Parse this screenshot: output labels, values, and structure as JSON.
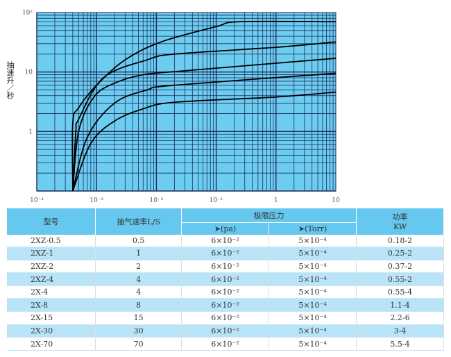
{
  "chart_data": {
    "type": "line",
    "title": "",
    "xlabel": "",
    "ylabel": "抽速升／秒",
    "xscale": "log",
    "yscale": "log",
    "xlim": [
      0.0001,
      10
    ],
    "ylim": [
      0.1,
      100
    ],
    "grid": true,
    "background_color": "#6ccdf0",
    "grid_color": "#1b2b5c",
    "line_color": "#000000",
    "x_ticks": [
      0.0001,
      0.001,
      0.01,
      0.1,
      1,
      10
    ],
    "x_tick_labels": [
      "10⁻⁴",
      "10⁻³",
      "10⁻²",
      "10⁻¹",
      "1",
      "10"
    ],
    "y_ticks": [
      100,
      10,
      1
    ],
    "y_tick_labels": [
      "10²",
      "10",
      "1"
    ],
    "series": [
      {
        "points": [
          [
            0.0004,
            0.1
          ],
          [
            0.0004,
            1.4
          ],
          [
            0.0005,
            2.5
          ],
          [
            0.001,
            6
          ],
          [
            0.003,
            16
          ],
          [
            0.012,
            32
          ],
          [
            0.1,
            58
          ],
          [
            0.25,
            70
          ],
          [
            10,
            70
          ]
        ]
      },
      {
        "points": [
          [
            0.0004,
            0.1
          ],
          [
            0.00045,
            1
          ],
          [
            0.0005,
            1.6
          ],
          [
            0.0013,
            8
          ],
          [
            0.007,
            16
          ],
          [
            0.02,
            20
          ],
          [
            1,
            26
          ],
          [
            10,
            32
          ]
        ]
      },
      {
        "points": [
          [
            0.0004,
            0.1
          ],
          [
            0.0005,
            1
          ],
          [
            0.0009,
            3.8
          ],
          [
            0.002,
            6.5
          ],
          [
            0.006,
            9
          ],
          [
            0.03,
            10.5
          ],
          [
            10,
            17
          ]
        ]
      },
      {
        "points": [
          [
            0.0004,
            0.1
          ],
          [
            0.0007,
            0.8
          ],
          [
            0.002,
            3
          ],
          [
            0.007,
            5
          ],
          [
            0.02,
            6
          ],
          [
            10,
            9.5
          ]
        ]
      },
      {
        "points": [
          [
            0.0004,
            0.1
          ],
          [
            0.0008,
            0.63
          ],
          [
            0.002,
            1.5
          ],
          [
            0.006,
            2.4
          ],
          [
            0.02,
            3.1
          ],
          [
            1,
            3.8
          ],
          [
            10,
            4.6
          ]
        ]
      }
    ]
  },
  "table": {
    "headers": {
      "model": "型号",
      "speed": "抽气速率L/S",
      "pressure": "极限压力",
      "pa": "➤(pa)",
      "torr": "➤(Torr)",
      "power": "功率",
      "power_unit": "KW"
    },
    "rows": [
      [
        "2XZ-0.5",
        "0.5",
        "6×10⁻²",
        "5×10⁻⁴",
        "0.18-2"
      ],
      [
        "2XZ-1",
        "1",
        "6×10⁻²",
        "5×10⁻⁴",
        "0.25-2"
      ],
      [
        "2XZ-2",
        "2",
        "6×10⁻²",
        "5×10⁻⁴",
        "0.37-2"
      ],
      [
        "2XZ-4",
        "4",
        "6×10⁻²",
        "5×10⁻⁴",
        "0.55-2"
      ],
      [
        "2X-4",
        "4",
        "6×10⁻²",
        "5×10⁻⁴",
        "0.55-4"
      ],
      [
        "2X-8",
        "8",
        "6×10⁻²",
        "5×10⁻⁴",
        "1.1-4"
      ],
      [
        "2X-15",
        "15",
        "6×10⁻²",
        "5×10⁻⁴",
        "2.2-6"
      ],
      [
        "2X-30",
        "30",
        "6×10⁻²",
        "5×10⁻⁴",
        "3-4"
      ],
      [
        "2X-70",
        "70",
        "6×10⁻²",
        "5×10⁻⁴",
        "5.5-4"
      ]
    ]
  }
}
